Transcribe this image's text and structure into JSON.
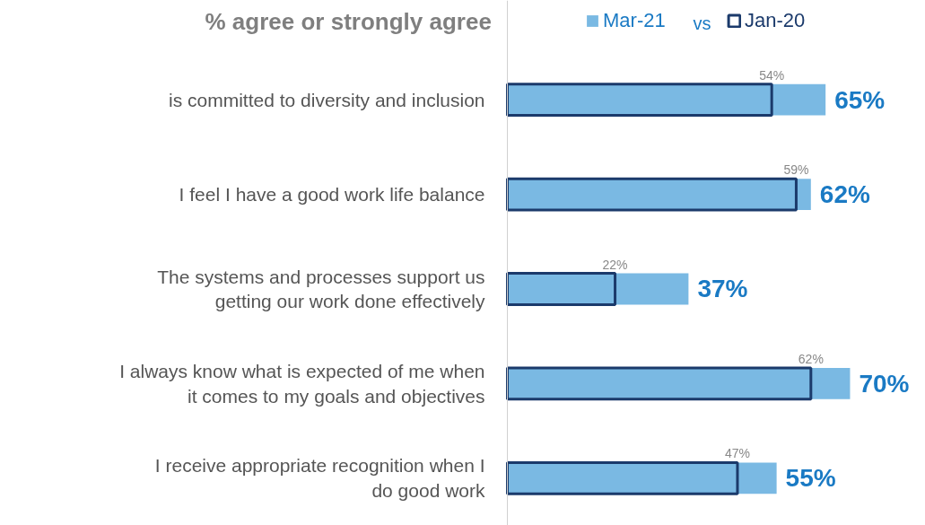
{
  "chart_data": {
    "type": "bar",
    "orientation": "horizontal",
    "title": "% agree or strongly agree",
    "annotations": [
      "vs"
    ],
    "legend": "top",
    "grid": false,
    "categories": [
      "is committed to diversity and inclusion",
      "I feel I have a good work life balance",
      "The systems and processes support us getting our work done effectively",
      "I always know what is expected of me when it comes to my goals and objectives",
      "I receive appropriate recognition when I do good work"
    ],
    "series": [
      {
        "name": "Mar-21",
        "color": "#7ab9e3",
        "values": [
          65,
          62,
          37,
          70,
          55
        ],
        "value_labels": [
          "65%",
          "62%",
          "37%",
          "70%",
          "55%"
        ]
      },
      {
        "name": "Jan-20",
        "color": "#1b3a6b",
        "values": [
          54,
          59,
          22,
          62,
          47
        ],
        "value_labels": [
          "54%",
          "59%",
          "22%",
          "62%",
          "47%"
        ]
      }
    ]
  }
}
